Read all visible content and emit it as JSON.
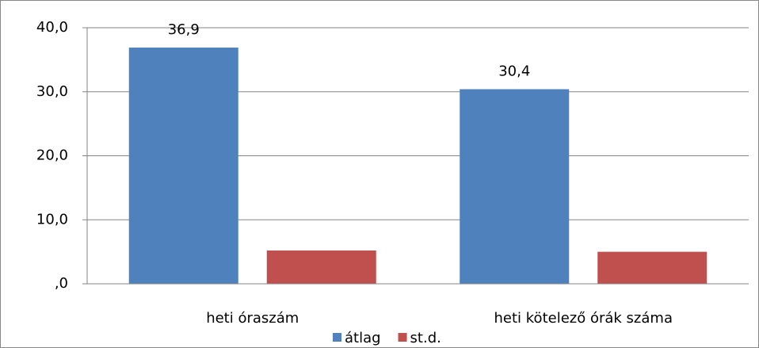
{
  "chart_data": {
    "type": "bar",
    "categories": [
      "heti óraszám",
      "heti kötelező órák száma"
    ],
    "series": [
      {
        "name": "átlag",
        "color": "#4f81bd",
        "values": [
          36.9,
          30.4
        ],
        "value_labels": [
          "36,9",
          "30,4"
        ]
      },
      {
        "name": "st.d.",
        "color": "#c0504d",
        "values": [
          5.2,
          5.0
        ]
      }
    ],
    "ylim": [
      0,
      40
    ],
    "yticks": [
      {
        "value": 0,
        "label": ",0"
      },
      {
        "value": 10,
        "label": "10,0"
      },
      {
        "value": 20,
        "label": "20,0"
      },
      {
        "value": 30,
        "label": "30,0"
      },
      {
        "value": 40,
        "label": "40,0"
      }
    ],
    "grid": true,
    "legend": "bottom"
  }
}
